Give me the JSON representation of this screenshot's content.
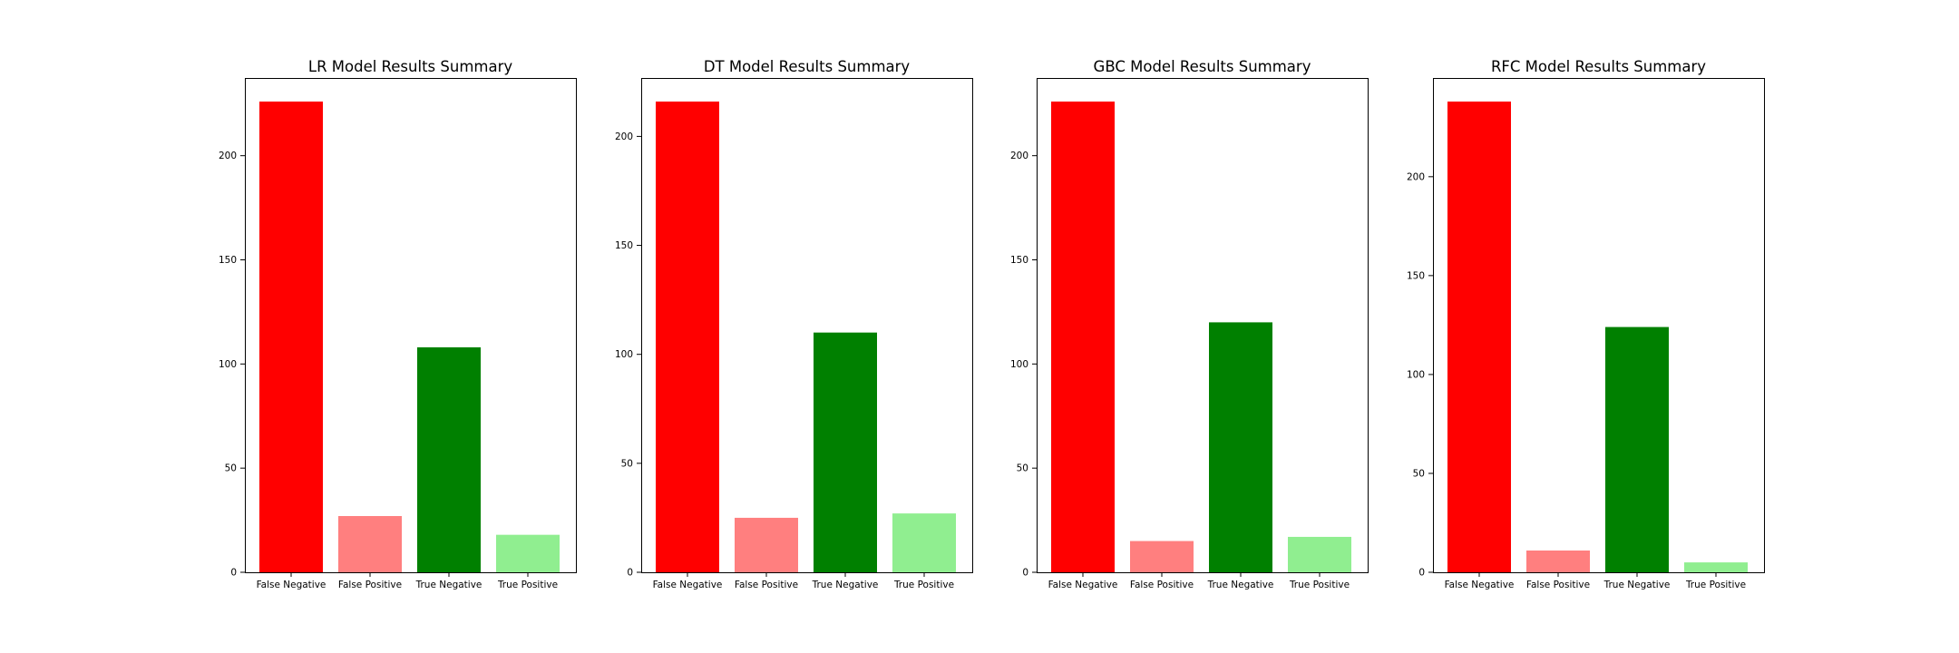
{
  "chart_data": [
    {
      "type": "bar",
      "title": "LR Model Results Summary",
      "categories": [
        "False Negative",
        "False Positive",
        "True Negative",
        "True Positive"
      ],
      "values": [
        226,
        27,
        108,
        18
      ],
      "colors": [
        "#ff0000",
        "#ff7f7f",
        "#008000",
        "#90ee90"
      ],
      "yticks": [
        0,
        50,
        100,
        150,
        200
      ],
      "ylim": [
        0,
        237.3
      ]
    },
    {
      "type": "bar",
      "title": "DT Model Results Summary",
      "categories": [
        "False Negative",
        "False Positive",
        "True Negative",
        "True Positive"
      ],
      "values": [
        216,
        25,
        110,
        27
      ],
      "colors": [
        "#ff0000",
        "#ff7f7f",
        "#008000",
        "#90ee90"
      ],
      "yticks": [
        0,
        50,
        100,
        150,
        200
      ],
      "ylim": [
        0,
        226.8
      ]
    },
    {
      "type": "bar",
      "title": "GBC Model Results Summary",
      "categories": [
        "False Negative",
        "False Positive",
        "True Negative",
        "True Positive"
      ],
      "values": [
        226,
        15,
        120,
        17
      ],
      "colors": [
        "#ff0000",
        "#ff7f7f",
        "#008000",
        "#90ee90"
      ],
      "yticks": [
        0,
        50,
        100,
        150,
        200
      ],
      "ylim": [
        0,
        237.3
      ]
    },
    {
      "type": "bar",
      "title": "RFC Model Results Summary",
      "categories": [
        "False Negative",
        "False Positive",
        "True Negative",
        "True Positive"
      ],
      "values": [
        238,
        11,
        124,
        5
      ],
      "colors": [
        "#ff0000",
        "#ff7f7f",
        "#008000",
        "#90ee90"
      ],
      "yticks": [
        0,
        50,
        100,
        150,
        200
      ],
      "ylim": [
        0,
        249.9
      ]
    }
  ]
}
